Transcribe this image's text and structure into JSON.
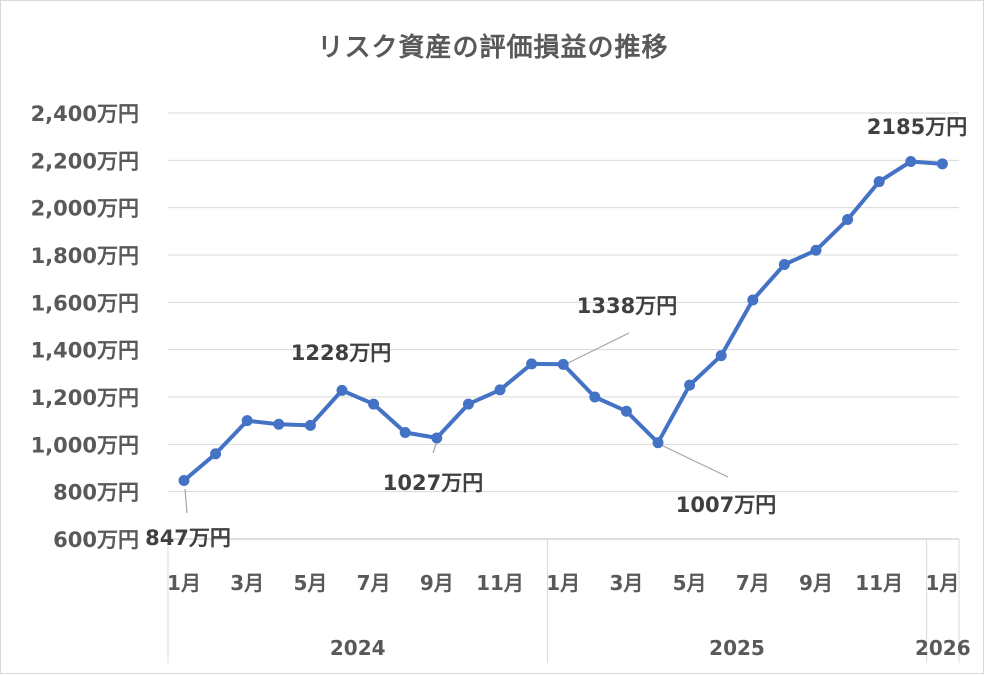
{
  "chart_data": {
    "type": "line",
    "title": "リスク資産の評価損益の推移",
    "y_unit_suffix": "万円",
    "ylim": [
      600,
      2400
    ],
    "y_ticks": [
      600,
      800,
      1000,
      1200,
      1400,
      1600,
      1800,
      2000,
      2200,
      2400
    ],
    "y_tick_labels": [
      "600万円",
      "800万円",
      "1,000万円",
      "1,200万円",
      "1,400万円",
      "1,600万円",
      "1,800万円",
      "2,000万円",
      "2,200万円",
      "2,400万円"
    ],
    "grid": true,
    "legend": "none",
    "x_month_labels": [
      "1月",
      "3月",
      "5月",
      "7月",
      "9月",
      "11月",
      "1月",
      "3月",
      "5月",
      "7月",
      "9月",
      "11月",
      "1月"
    ],
    "x_month_label_indices": [
      0,
      2,
      4,
      6,
      8,
      10,
      12,
      14,
      16,
      18,
      20,
      22,
      24
    ],
    "x_year_groups": [
      {
        "label": "2024",
        "start": 0,
        "end": 11
      },
      {
        "label": "2025",
        "start": 12,
        "end": 23
      },
      {
        "label": "2026",
        "start": 24,
        "end": 25
      }
    ],
    "series": [
      {
        "color": "#4472c4",
        "values": [
          847,
          960,
          1100,
          1085,
          1080,
          1228,
          1170,
          1050,
          1027,
          1170,
          1230,
          1340,
          1338,
          1200,
          1140,
          1007,
          1250,
          1375,
          1610,
          1760,
          1820,
          1950,
          2110,
          2195,
          2185
        ]
      }
    ],
    "annotations": [
      {
        "index": 0,
        "label": "847万円"
      },
      {
        "index": 5,
        "label": "1228万円"
      },
      {
        "index": 8,
        "label": "1027万円"
      },
      {
        "index": 12,
        "label": "1338万円"
      },
      {
        "index": 15,
        "label": "1007万円"
      },
      {
        "index": 24,
        "label": "2185万円"
      }
    ]
  }
}
